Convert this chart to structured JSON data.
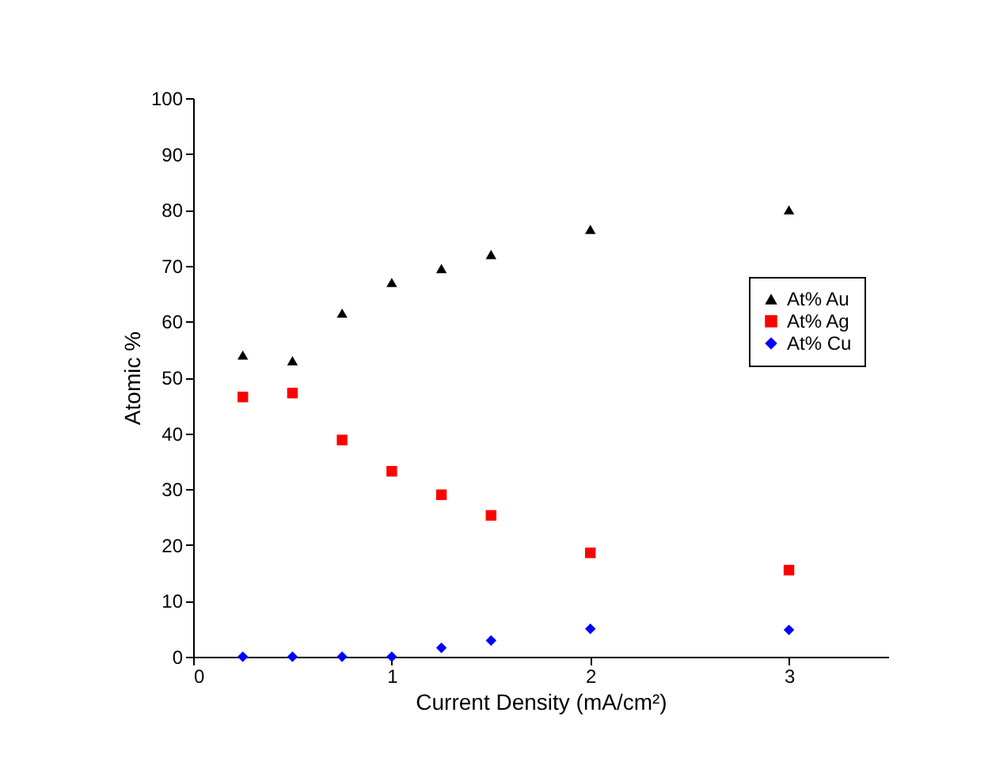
{
  "chart_data": {
    "type": "scatter",
    "xlabel": "Current Density (mA/cm²)",
    "ylabel": "Atomic %",
    "x": [
      0.25,
      0.5,
      0.75,
      1,
      1.25,
      1.5,
      2,
      3
    ],
    "series": [
      {
        "name": "At% Au",
        "color": "#000000",
        "marker": "triangle",
        "values": [
          54,
          53,
          61.5,
          67,
          69.5,
          72,
          76.5,
          80
        ]
      },
      {
        "name": "At% Ag",
        "color": "#ff0000",
        "marker": "square",
        "values": [
          46.5,
          47.2,
          38.8,
          33.2,
          29,
          25.3,
          18.6,
          15.5
        ]
      },
      {
        "name": "At% Cu",
        "color": "#0000ff",
        "marker": "diamond",
        "values": [
          0,
          0,
          0,
          0,
          1.6,
          2.9,
          5,
          4.8
        ]
      }
    ],
    "xlim": [
      0,
      3.5
    ],
    "xticks": [
      0,
      1,
      2,
      3
    ],
    "ylim": [
      0,
      100
    ],
    "yticks": [
      0,
      10,
      20,
      30,
      40,
      50,
      60,
      70,
      80,
      90,
      100
    ],
    "grid": false,
    "legend": "right"
  }
}
